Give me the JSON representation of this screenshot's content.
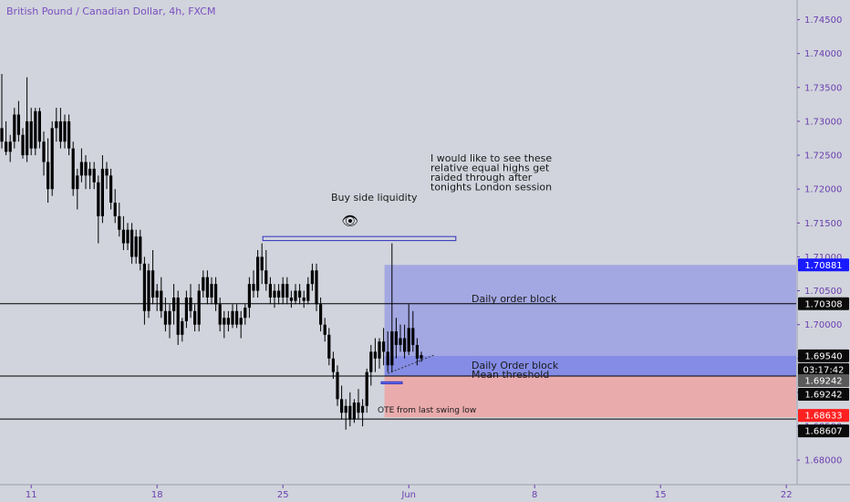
{
  "header": {
    "title": "British Pound / Canadian Dollar, 4h, FXCM"
  },
  "theme": {
    "background": "#d1d4dc",
    "title_color": "#7a4fc0",
    "axis_text": "#6a3fb0",
    "candle_color": "#000000",
    "order_block_fill": "#6a74e8",
    "discount_zone_fill": "#f0a0a0",
    "badge_blue": "#1a1aff",
    "badge_red": "#ff2020",
    "badge_dark": "#0a0a0a",
    "badge_grey": "#5a5a5a"
  },
  "chart_data": {
    "type": "candlestick",
    "title": "British Pound / Canadian Dollar, 4h, FXCM",
    "ylim": [
      1.678,
      1.7475
    ],
    "y_ticks": [
      "1.68000",
      "1.68500",
      "1.69000",
      "1.69500",
      "1.70000",
      "1.70500",
      "1.71000",
      "1.71500",
      "1.72000",
      "1.72500",
      "1.73000",
      "1.73500",
      "1.74000",
      "1.74500"
    ],
    "x_ticks": [
      {
        "label": "11",
        "index": 7
      },
      {
        "label": "18",
        "index": 37
      },
      {
        "label": "25",
        "index": 67
      },
      {
        "label": "Jun",
        "index": 97
      },
      {
        "label": "8",
        "index": 127
      },
      {
        "label": "15",
        "index": 157
      },
      {
        "label": "22",
        "index": 187
      }
    ],
    "candles": [
      [
        1.729,
        1.737,
        1.726,
        1.727
      ],
      [
        1.727,
        1.73,
        1.725,
        1.7255
      ],
      [
        1.7255,
        1.728,
        1.724,
        1.727
      ],
      [
        1.727,
        1.732,
        1.726,
        1.731
      ],
      [
        1.731,
        1.733,
        1.727,
        1.728
      ],
      [
        1.728,
        1.729,
        1.7245,
        1.725
      ],
      [
        1.725,
        1.7365,
        1.724,
        1.73
      ],
      [
        1.73,
        1.732,
        1.725,
        1.726
      ],
      [
        1.726,
        1.732,
        1.725,
        1.7315
      ],
      [
        1.7315,
        1.732,
        1.726,
        1.727
      ],
      [
        1.727,
        1.7285,
        1.722,
        1.724
      ],
      [
        1.724,
        1.7275,
        1.718,
        1.72
      ],
      [
        1.72,
        1.73,
        1.719,
        1.729
      ],
      [
        1.729,
        1.732,
        1.727,
        1.73
      ],
      [
        1.73,
        1.732,
        1.726,
        1.727
      ],
      [
        1.727,
        1.731,
        1.726,
        1.73
      ],
      [
        1.73,
        1.731,
        1.725,
        1.726
      ],
      [
        1.726,
        1.727,
        1.719,
        1.72
      ],
      [
        1.72,
        1.723,
        1.717,
        1.722
      ],
      [
        1.722,
        1.726,
        1.721,
        1.724
      ],
      [
        1.724,
        1.725,
        1.72,
        1.722
      ],
      [
        1.722,
        1.724,
        1.72,
        1.723
      ],
      [
        1.723,
        1.724,
        1.72,
        1.721
      ],
      [
        1.721,
        1.722,
        1.712,
        1.716
      ],
      [
        1.716,
        1.725,
        1.715,
        1.723
      ],
      [
        1.723,
        1.724,
        1.72,
        1.722
      ],
      [
        1.722,
        1.723,
        1.717,
        1.718
      ],
      [
        1.718,
        1.72,
        1.715,
        1.716
      ],
      [
        1.716,
        1.718,
        1.713,
        1.714
      ],
      [
        1.714,
        1.716,
        1.711,
        1.712
      ],
      [
        1.712,
        1.715,
        1.711,
        1.714
      ],
      [
        1.714,
        1.715,
        1.709,
        1.71
      ],
      [
        1.71,
        1.714,
        1.709,
        1.713
      ],
      [
        1.713,
        1.714,
        1.708,
        1.709
      ],
      [
        1.709,
        1.71,
        1.7,
        1.702
      ],
      [
        1.702,
        1.709,
        1.701,
        1.708
      ],
      [
        1.708,
        1.711,
        1.703,
        1.704
      ],
      [
        1.704,
        1.706,
        1.702,
        1.705
      ],
      [
        1.705,
        1.707,
        1.701,
        1.702
      ],
      [
        1.702,
        1.704,
        1.699,
        1.7
      ],
      [
        1.7,
        1.703,
        1.698,
        1.702
      ],
      [
        1.702,
        1.706,
        1.7,
        1.704
      ],
      [
        1.704,
        1.705,
        1.697,
        1.6985
      ],
      [
        1.6985,
        1.701,
        1.6975,
        1.7005
      ],
      [
        1.7005,
        1.705,
        1.6995,
        1.704
      ],
      [
        1.704,
        1.706,
        1.701,
        1.702
      ],
      [
        1.702,
        1.703,
        1.699,
        1.7
      ],
      [
        1.7,
        1.706,
        1.699,
        1.705
      ],
      [
        1.705,
        1.708,
        1.704,
        1.707
      ],
      [
        1.707,
        1.708,
        1.703,
        1.704
      ],
      [
        1.704,
        1.707,
        1.703,
        1.706
      ],
      [
        1.706,
        1.707,
        1.702,
        1.703
      ],
      [
        1.703,
        1.704,
        1.699,
        1.7
      ],
      [
        1.7,
        1.702,
        1.698,
        1.701
      ],
      [
        1.701,
        1.702,
        1.699,
        1.7
      ],
      [
        1.7,
        1.703,
        1.6995,
        1.702
      ],
      [
        1.702,
        1.703,
        1.6995,
        1.7
      ],
      [
        1.7,
        1.702,
        1.698,
        1.701
      ],
      [
        1.701,
        1.703,
        1.7,
        1.7025
      ],
      [
        1.7025,
        1.707,
        1.701,
        1.706
      ],
      [
        1.706,
        1.708,
        1.704,
        1.705
      ],
      [
        1.705,
        1.711,
        1.704,
        1.71
      ],
      [
        1.71,
        1.712,
        1.706,
        1.708
      ],
      [
        1.708,
        1.711,
        1.705,
        1.706
      ],
      [
        1.706,
        1.707,
        1.703,
        1.704
      ],
      [
        1.704,
        1.706,
        1.7025,
        1.705
      ],
      [
        1.705,
        1.706,
        1.703,
        1.704
      ],
      [
        1.704,
        1.707,
        1.703,
        1.706
      ],
      [
        1.706,
        1.707,
        1.703,
        1.704
      ],
      [
        1.704,
        1.705,
        1.7025,
        1.7035
      ],
      [
        1.7035,
        1.706,
        1.703,
        1.705
      ],
      [
        1.705,
        1.706,
        1.703,
        1.704
      ],
      [
        1.704,
        1.705,
        1.7025,
        1.7035
      ],
      [
        1.7035,
        1.707,
        1.703,
        1.706
      ],
      [
        1.706,
        1.709,
        1.705,
        1.708
      ],
      [
        1.708,
        1.709,
        1.702,
        1.703
      ],
      [
        1.703,
        1.704,
        1.699,
        1.7
      ],
      [
        1.7,
        1.701,
        1.6975,
        1.6985
      ],
      [
        1.6985,
        1.6995,
        1.694,
        1.695
      ],
      [
        1.695,
        1.696,
        1.692,
        1.693
      ],
      [
        1.693,
        1.694,
        1.688,
        1.689
      ],
      [
        1.689,
        1.691,
        1.686,
        1.687
      ],
      [
        1.687,
        1.689,
        1.6845,
        1.688
      ],
      [
        1.688,
        1.69,
        1.685,
        1.686
      ],
      [
        1.686,
        1.689,
        1.6855,
        1.6885
      ],
      [
        1.6885,
        1.6905,
        1.686,
        1.687
      ],
      [
        1.687,
        1.689,
        1.685,
        1.688
      ],
      [
        1.688,
        1.6935,
        1.687,
        1.693
      ],
      [
        1.693,
        1.697,
        1.691,
        1.696
      ],
      [
        1.696,
        1.698,
        1.693,
        1.695
      ],
      [
        1.695,
        1.698,
        1.6935,
        1.6975
      ],
      [
        1.6975,
        1.6995,
        1.694,
        1.696
      ],
      [
        1.696,
        1.699,
        1.693,
        1.694
      ],
      [
        1.694,
        1.712,
        1.693,
        1.699
      ],
      [
        1.699,
        1.701,
        1.695,
        1.697
      ],
      [
        1.697,
        1.7,
        1.696,
        1.698
      ],
      [
        1.698,
        1.7,
        1.695,
        1.696
      ],
      [
        1.696,
        1.703,
        1.6955,
        1.6995
      ],
      [
        1.6995,
        1.702,
        1.696,
        1.697
      ],
      [
        1.697,
        1.698,
        1.694,
        1.695
      ],
      [
        1.695,
        1.696,
        1.6945,
        1.6955
      ]
    ],
    "key_price_lines": [
      1.70308,
      1.69242,
      1.68607
    ],
    "badges": [
      {
        "label": "1.70881",
        "style": "blue"
      },
      {
        "label": "1.70308",
        "style": "dark"
      },
      {
        "label": "1.69540",
        "style": "outline"
      },
      {
        "label": "03:17:42",
        "style": "outline"
      },
      {
        "label": "1.69242",
        "style": "grey"
      },
      {
        "label": "1.69242",
        "style": "dark"
      },
      {
        "label": "1.68633",
        "style": "red"
      },
      {
        "label": "1.68607",
        "style": "dark"
      }
    ],
    "annotations": {
      "note_lines": [
        "I would like to see these",
        "relative equal highs get",
        "raided through after",
        "tonights London session"
      ],
      "buy_side": "Buy side liquidity",
      "eye_glyph": "👁",
      "daily_ob": "Daily order block",
      "mean_threshold_1": "Daily Order block",
      "mean_threshold_2": "Mean threshold",
      "ote": "OTE from last swing low"
    }
  }
}
